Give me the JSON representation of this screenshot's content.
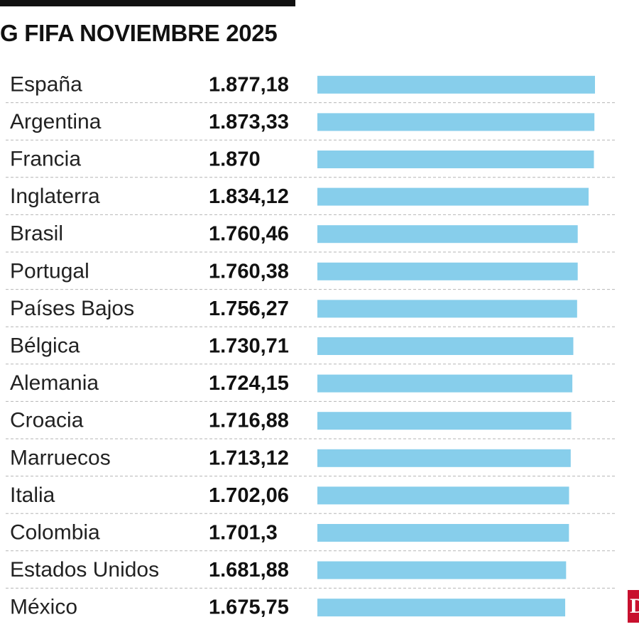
{
  "title": "G FIFA NOVIEMBRE 2025",
  "logo_text": "D",
  "colors": {
    "bar": "#87ceeb",
    "divider": "#b5b5b5",
    "logo": "#c8102e"
  },
  "chart_data": {
    "type": "bar",
    "orientation": "horizontal",
    "title": "G FIFA NOVIEMBRE 2025",
    "categories": [
      "España",
      "Argentina",
      "Francia",
      "Inglaterra",
      "Brasil",
      "Portugal",
      "Países Bajos",
      "Bélgica",
      "Alemania",
      "Croacia",
      "Marruecos",
      "Italia",
      "Colombia",
      "Estados Unidos",
      "México"
    ],
    "value_labels": [
      "1.877,18",
      "1.873,33",
      "1.870",
      "1.834,12",
      "1.760,46",
      "1.760,38",
      "1.756,27",
      "1.730,71",
      "1.724,15",
      "1.716,88",
      "1.713,12",
      "1.702,06",
      "1.701,3",
      "1.681,88",
      "1.675,75"
    ],
    "values": [
      1877.18,
      1873.33,
      1870,
      1834.12,
      1760.46,
      1760.38,
      1756.27,
      1730.71,
      1724.15,
      1716.88,
      1713.12,
      1702.06,
      1701.3,
      1681.88,
      1675.75
    ],
    "grid": false
  }
}
